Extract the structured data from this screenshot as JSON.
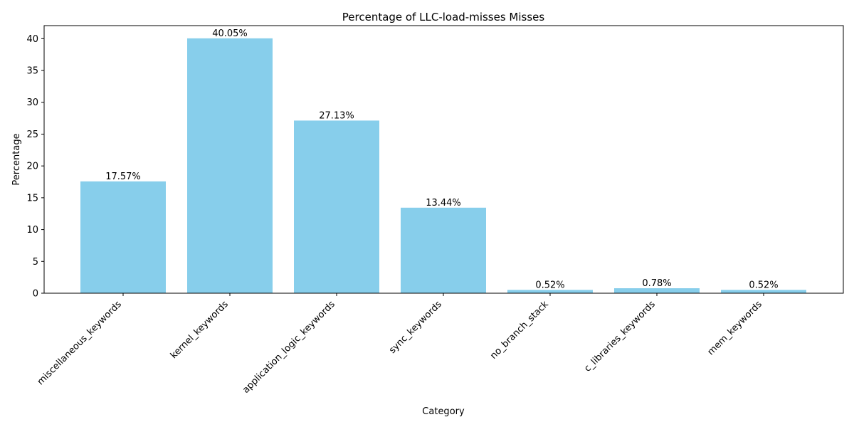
{
  "chart_data": {
    "type": "bar",
    "title": "Percentage of LLC-load-misses Misses",
    "xlabel": "Category",
    "ylabel": "Percentage",
    "categories": [
      "miscellaneous_keywords",
      "kernel_keywords",
      "application_logic_keywords",
      "sync_keywords",
      "no_branch_stack",
      "c_libraries_keywords",
      "mem_keywords"
    ],
    "values": [
      17.57,
      40.05,
      27.13,
      13.44,
      0.52,
      0.78,
      0.52
    ],
    "data_labels": [
      "17.57%",
      "40.05%",
      "27.13%",
      "13.44%",
      "0.52%",
      "0.78%",
      "0.52%"
    ],
    "ylim": [
      0,
      42.05
    ],
    "yticks": [
      0,
      5,
      10,
      15,
      20,
      25,
      30,
      35,
      40
    ],
    "grid": false,
    "bar_color": "#87CEEB"
  }
}
